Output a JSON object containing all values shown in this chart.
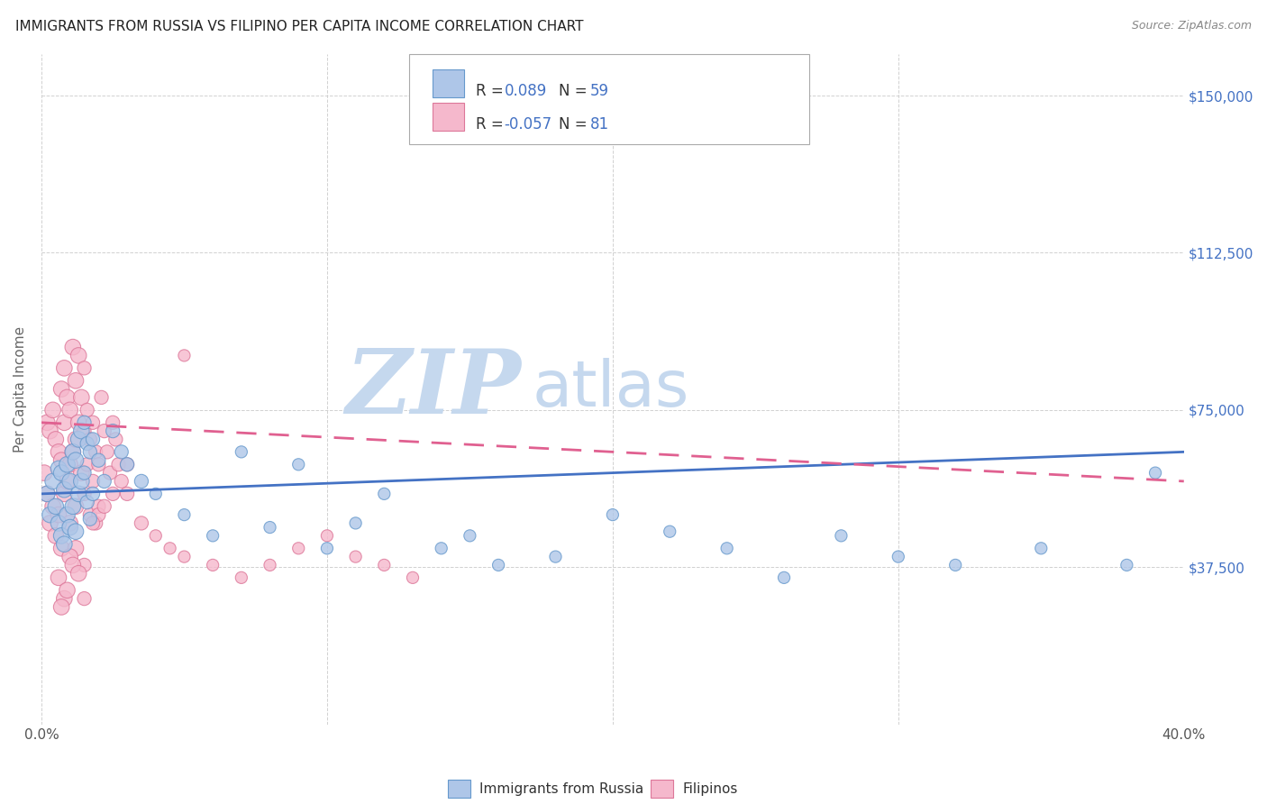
{
  "title": "IMMIGRANTS FROM RUSSIA VS FILIPINO PER CAPITA INCOME CORRELATION CHART",
  "source": "Source: ZipAtlas.com",
  "ylabel": "Per Capita Income",
  "yticks": [
    0,
    37500,
    75000,
    112500,
    150000
  ],
  "ytick_labels": [
    "",
    "$37,500",
    "$75,000",
    "$112,500",
    "$150,000"
  ],
  "xlim": [
    0.0,
    0.4
  ],
  "ylim": [
    0,
    160000
  ],
  "blue_R": "0.089",
  "blue_N": "59",
  "pink_R": "-0.057",
  "pink_N": "81",
  "blue_color": "#aec6e8",
  "blue_edge": "#6699cc",
  "pink_color": "#f5b8cc",
  "pink_edge": "#dd7799",
  "trend_blue": "#4472c4",
  "trend_pink": "#e06090",
  "rn_color": "#4472c4",
  "watermark_zip": "ZIP",
  "watermark_atlas": "atlas",
  "watermark_color": "#c5d8ee",
  "legend_label_blue": "Immigrants from Russia",
  "legend_label_pink": "Filipinos",
  "blue_scatter_x": [
    0.002,
    0.003,
    0.004,
    0.005,
    0.006,
    0.006,
    0.007,
    0.007,
    0.008,
    0.008,
    0.009,
    0.009,
    0.01,
    0.01,
    0.011,
    0.011,
    0.012,
    0.012,
    0.013,
    0.013,
    0.014,
    0.014,
    0.015,
    0.015,
    0.016,
    0.016,
    0.017,
    0.017,
    0.018,
    0.018,
    0.02,
    0.022,
    0.025,
    0.028,
    0.03,
    0.035,
    0.04,
    0.05,
    0.06,
    0.07,
    0.08,
    0.09,
    0.1,
    0.11,
    0.12,
    0.14,
    0.15,
    0.16,
    0.18,
    0.2,
    0.22,
    0.24,
    0.26,
    0.28,
    0.3,
    0.32,
    0.35,
    0.38,
    0.39
  ],
  "blue_scatter_y": [
    55000,
    50000,
    58000,
    52000,
    61000,
    48000,
    60000,
    45000,
    56000,
    43000,
    62000,
    50000,
    58000,
    47000,
    65000,
    52000,
    63000,
    46000,
    68000,
    55000,
    70000,
    58000,
    72000,
    60000,
    67000,
    53000,
    65000,
    49000,
    68000,
    55000,
    63000,
    58000,
    70000,
    65000,
    62000,
    58000,
    55000,
    50000,
    45000,
    65000,
    47000,
    62000,
    42000,
    48000,
    55000,
    42000,
    45000,
    38000,
    40000,
    50000,
    46000,
    42000,
    35000,
    45000,
    40000,
    38000,
    42000,
    38000,
    60000
  ],
  "pink_scatter_x": [
    0.001,
    0.002,
    0.002,
    0.003,
    0.003,
    0.004,
    0.004,
    0.005,
    0.005,
    0.006,
    0.006,
    0.007,
    0.007,
    0.007,
    0.008,
    0.008,
    0.008,
    0.009,
    0.009,
    0.01,
    0.01,
    0.01,
    0.011,
    0.011,
    0.012,
    0.012,
    0.012,
    0.013,
    0.013,
    0.014,
    0.014,
    0.015,
    0.015,
    0.015,
    0.016,
    0.016,
    0.017,
    0.017,
    0.018,
    0.018,
    0.019,
    0.019,
    0.02,
    0.02,
    0.021,
    0.022,
    0.023,
    0.024,
    0.025,
    0.026,
    0.027,
    0.028,
    0.03,
    0.035,
    0.04,
    0.045,
    0.05,
    0.06,
    0.07,
    0.08,
    0.09,
    0.1,
    0.11,
    0.12,
    0.13,
    0.05,
    0.03,
    0.02,
    0.015,
    0.012,
    0.018,
    0.022,
    0.025,
    0.015,
    0.01,
    0.008,
    0.007,
    0.006,
    0.009,
    0.011,
    0.013
  ],
  "pink_scatter_y": [
    60000,
    72000,
    55000,
    70000,
    48000,
    75000,
    52000,
    68000,
    45000,
    65000,
    50000,
    80000,
    63000,
    42000,
    85000,
    72000,
    55000,
    78000,
    58000,
    75000,
    62000,
    48000,
    90000,
    65000,
    82000,
    68000,
    52000,
    88000,
    72000,
    78000,
    60000,
    85000,
    70000,
    55000,
    75000,
    62000,
    68000,
    50000,
    72000,
    58000,
    65000,
    48000,
    62000,
    52000,
    78000,
    70000,
    65000,
    60000,
    72000,
    68000,
    62000,
    58000,
    55000,
    48000,
    45000,
    42000,
    40000,
    38000,
    35000,
    38000,
    42000,
    45000,
    40000,
    38000,
    35000,
    88000,
    62000,
    50000,
    38000,
    42000,
    48000,
    52000,
    55000,
    30000,
    40000,
    30000,
    28000,
    35000,
    32000,
    38000,
    36000
  ]
}
